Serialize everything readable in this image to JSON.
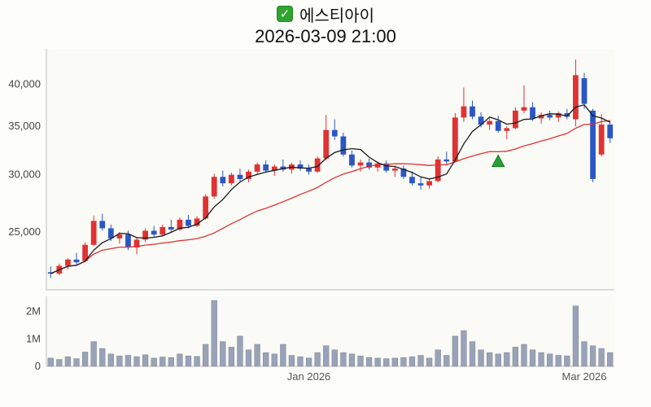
{
  "header": {
    "checkbox_icon": "check-icon",
    "checkbox_checked": true,
    "title": "에스티아이",
    "datetime": "2026-03-09 21:00"
  },
  "colors": {
    "up": "#e03232",
    "down": "#2b57c5",
    "ma_short": "#1a1a1a",
    "ma_long": "#e03232",
    "volume": "#9aa2b8",
    "volume_border": "#7e8699",
    "marker": "#2aa233",
    "marker_border": "#0d7a1c",
    "panel_bg": "#fafaf6",
    "axis_line": "#bdbdbd",
    "axis_text": "#444444",
    "x_text": "#555555"
  },
  "chart_data": {
    "type": "candlestick",
    "title": "에스티아이",
    "datetime": "2026-03-09 21:00",
    "scale": "log",
    "price_axis": {
      "range": [
        20800,
        44800
      ],
      "ticks": [
        {
          "label": "40,000",
          "value": 40000
        },
        {
          "label": "35,000",
          "value": 35000
        },
        {
          "label": "30,000",
          "value": 30000
        },
        {
          "label": "25,000",
          "value": 25000
        }
      ]
    },
    "volume_axis": {
      "range": [
        0,
        2550000
      ],
      "ticks": [
        {
          "label": "2M",
          "value": 2000000
        },
        {
          "label": "1M",
          "value": 1000000
        },
        {
          "label": "0",
          "value": 0
        }
      ]
    },
    "x_axis": {
      "ticks": [
        {
          "label": "Jan 2026",
          "index": 30
        },
        {
          "label": "Mar 2026",
          "index": 62
        }
      ]
    },
    "ma_short_period": 5,
    "ma_long_period": 20,
    "marker": {
      "index": 52,
      "price": 31200,
      "shape": "triangle-up"
    },
    "candles": [
      [
        22000,
        22400,
        21600,
        21900,
        300000
      ],
      [
        21900,
        22600,
        21800,
        22450,
        250000
      ],
      [
        22450,
        23000,
        22200,
        22900,
        350000
      ],
      [
        22900,
        23400,
        22500,
        22700,
        280000
      ],
      [
        22800,
        24200,
        22700,
        24000,
        520000
      ],
      [
        24000,
        26350,
        23900,
        25900,
        900000
      ],
      [
        25900,
        26500,
        25100,
        25300,
        650000
      ],
      [
        25300,
        25600,
        24300,
        24500,
        450000
      ],
      [
        24500,
        25000,
        24100,
        24800,
        380000
      ],
      [
        24800,
        25100,
        23600,
        23800,
        400000
      ],
      [
        23800,
        24600,
        23300,
        24400,
        350000
      ],
      [
        24400,
        25300,
        24200,
        25100,
        420000
      ],
      [
        25100,
        25500,
        24600,
        24800,
        300000
      ],
      [
        24800,
        25600,
        24700,
        25400,
        340000
      ],
      [
        25400,
        26000,
        25000,
        25200,
        320000
      ],
      [
        25200,
        26200,
        25100,
        26000,
        450000
      ],
      [
        26000,
        26400,
        25300,
        25500,
        380000
      ],
      [
        25500,
        26300,
        25400,
        26100,
        360000
      ],
      [
        26100,
        28200,
        26000,
        28000,
        800000
      ],
      [
        28000,
        30100,
        27800,
        29800,
        2400000
      ],
      [
        29800,
        30400,
        28900,
        29200,
        900000
      ],
      [
        29200,
        30200,
        29000,
        30000,
        700000
      ],
      [
        30000,
        30600,
        29400,
        29600,
        1100000
      ],
      [
        29600,
        30500,
        29300,
        30300,
        600000
      ],
      [
        30300,
        31200,
        30000,
        31000,
        800000
      ],
      [
        31000,
        31400,
        30200,
        30400,
        500000
      ],
      [
        30400,
        31000,
        29900,
        30800,
        450000
      ],
      [
        30800,
        31500,
        30300,
        30500,
        800000
      ],
      [
        30500,
        31200,
        30100,
        31000,
        400000
      ],
      [
        31000,
        31400,
        30400,
        30600,
        350000
      ],
      [
        30600,
        31000,
        30000,
        30300,
        300000
      ],
      [
        30300,
        31800,
        30200,
        31600,
        500000
      ],
      [
        31600,
        36300,
        31400,
        34600,
        750000
      ],
      [
        34600,
        35800,
        33500,
        33900,
        600000
      ],
      [
        33900,
        34300,
        31800,
        32000,
        500000
      ],
      [
        32000,
        32400,
        30700,
        30900,
        450000
      ],
      [
        30900,
        31500,
        30300,
        31200,
        380000
      ],
      [
        31200,
        31600,
        30500,
        30700,
        320000
      ],
      [
        30700,
        31300,
        30300,
        31100,
        300000
      ],
      [
        31100,
        31400,
        30200,
        30400,
        280000
      ],
      [
        30400,
        30900,
        29800,
        30600,
        300000
      ],
      [
        30600,
        30900,
        29600,
        29800,
        320000
      ],
      [
        29800,
        30300,
        29000,
        29200,
        350000
      ],
      [
        29200,
        29800,
        28600,
        29000,
        400000
      ],
      [
        29000,
        29600,
        28700,
        29400,
        300000
      ],
      [
        29400,
        31800,
        29300,
        31500,
        600000
      ],
      [
        31500,
        32300,
        30900,
        31300,
        400000
      ],
      [
        31300,
        36500,
        31200,
        36000,
        1100000
      ],
      [
        36000,
        39600,
        35500,
        37300,
        1300000
      ],
      [
        37300,
        38000,
        35800,
        36100,
        900000
      ],
      [
        36100,
        36600,
        34900,
        35200,
        600000
      ],
      [
        35200,
        35900,
        34600,
        35600,
        500000
      ],
      [
        35600,
        36200,
        34300,
        34500,
        450000
      ],
      [
        34500,
        35000,
        33600,
        34800,
        500000
      ],
      [
        34800,
        37200,
        34700,
        36800,
        700000
      ],
      [
        36800,
        39900,
        36500,
        37200,
        800000
      ],
      [
        37200,
        37800,
        35600,
        35900,
        600000
      ],
      [
        35900,
        36600,
        35300,
        36300,
        500000
      ],
      [
        36300,
        36800,
        35700,
        36000,
        450000
      ],
      [
        36000,
        36700,
        35500,
        36500,
        400000
      ],
      [
        36500,
        37000,
        35800,
        36100,
        380000
      ],
      [
        35800,
        43300,
        35000,
        41200,
        2200000
      ],
      [
        40800,
        41500,
        37000,
        37600,
        900000
      ],
      [
        36800,
        37000,
        29300,
        29600,
        750000
      ],
      [
        32000,
        36400,
        31800,
        35200,
        650000
      ],
      [
        35200,
        35600,
        33200,
        33700,
        500000
      ]
    ]
  }
}
